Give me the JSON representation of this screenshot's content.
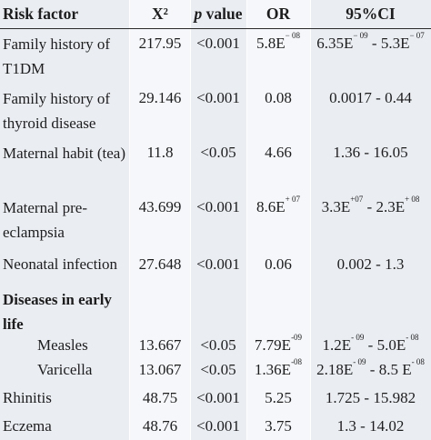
{
  "header": {
    "risk_factor": "Risk factor",
    "x2": "X²",
    "p_value_p": "p",
    "p_value_rest": " value",
    "or": "OR",
    "ci": "95%CI"
  },
  "rows": [
    {
      "factor": "Family history of T1DM",
      "x2": "217.95",
      "p": "<0.001",
      "or_base": "5.8E",
      "or_exp": "− 08",
      "ci_a": "6.35E",
      "ci_a_exp": "− 09",
      "ci_sep": " - ",
      "ci_b": "5.3E",
      "ci_b_exp": "− 07"
    },
    {
      "factor": "Family history of thyroid disease",
      "x2": "29.146",
      "p": "<0.001",
      "or_base": "0.08",
      "or_exp": "",
      "ci_a": "0.0017",
      "ci_a_exp": "",
      "ci_sep": " - ",
      "ci_b": "0.44",
      "ci_b_exp": ""
    },
    {
      "factor": "Maternal habit (tea)",
      "x2": "11.8",
      "p": "<0.05",
      "or_base": "4.66",
      "or_exp": "",
      "ci_a": "1.36",
      "ci_a_exp": "",
      "ci_sep": " - ",
      "ci_b": "16.05",
      "ci_b_exp": ""
    },
    {
      "factor": "Maternal pre-eclampsia",
      "x2": "43.699",
      "p": "<0.001",
      "or_base": "8.6E",
      "or_exp": "+ 07",
      "ci_a": "3.3E",
      "ci_a_exp": "+07",
      "ci_sep": " - ",
      "ci_b": "2.3E",
      "ci_b_exp": "+ 08"
    },
    {
      "factor": "Neonatal infection",
      "x2": "27.648",
      "p": "<0.001",
      "or_base": "0.06",
      "or_exp": "",
      "ci_a": "0.002",
      "ci_a_exp": "",
      "ci_sep": " - ",
      "ci_b": "1.3",
      "ci_b_exp": ""
    },
    {
      "factor": "Diseases in early life"
    },
    {
      "factor": "Measles",
      "x2": "13.667",
      "p": "<0.05",
      "or_base": "7.79E",
      "or_exp": "-09",
      "ci_a": "1.2E",
      "ci_a_exp": "- 09",
      "ci_sep": " - ",
      "ci_b": "5.0E",
      "ci_b_exp": "- 08"
    },
    {
      "factor": "Varicella",
      "x2": "13.067",
      "p": "<0.05",
      "or_base": "1.36E",
      "or_exp": "-08",
      "ci_a": "2.18E",
      "ci_a_exp": "- 09",
      "ci_sep": " - ",
      "ci_b": "8.5 E",
      "ci_b_exp": "- 08"
    },
    {
      "factor": "Rhinitis",
      "x2": "48.75",
      "p": "<0.001",
      "or_base": "5.25",
      "or_exp": "",
      "ci_a": "1.725",
      "ci_a_exp": "",
      "ci_sep": " - ",
      "ci_b": "15.982",
      "ci_b_exp": ""
    },
    {
      "factor": "Eczema",
      "x2": "48.76",
      "p": "<0.001",
      "or_base": "3.75",
      "or_exp": "",
      "ci_a": "1.3",
      "ci_a_exp": "",
      "ci_sep": " - ",
      "ci_b": "14.02",
      "ci_b_exp": ""
    }
  ]
}
